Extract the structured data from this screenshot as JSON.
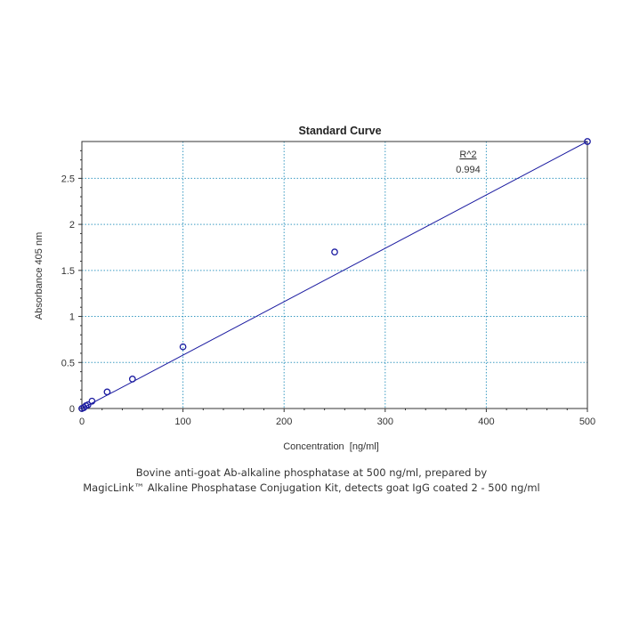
{
  "chart_data": {
    "type": "scatter",
    "title": "Standard Curve",
    "xlabel": "Concentration  [ng/ml]",
    "ylabel": "Absorbance 405 nm",
    "xlim": [
      0,
      500
    ],
    "ylim": [
      0,
      2.9
    ],
    "x_ticks": [
      0,
      100,
      200,
      300,
      400,
      500
    ],
    "x_tick_labels": [
      "0",
      "100",
      "200",
      "300",
      "400",
      "500"
    ],
    "y_ticks": [
      0,
      0.5,
      1,
      1.5,
      2,
      2.5
    ],
    "y_tick_labels": [
      "0",
      "0.5",
      "1",
      "1.5",
      "2",
      "2.5"
    ],
    "grid": true,
    "series": [
      {
        "points": [
          {
            "x": 0,
            "y": 0
          },
          {
            "x": 2,
            "y": 0.01
          },
          {
            "x": 4,
            "y": 0.03
          },
          {
            "x": 6,
            "y": 0.04
          },
          {
            "x": 10,
            "y": 0.08
          },
          {
            "x": 25,
            "y": 0.18
          },
          {
            "x": 50,
            "y": 0.32
          },
          {
            "x": 100,
            "y": 0.67
          },
          {
            "x": 250,
            "y": 1.7
          },
          {
            "x": 500,
            "y": 2.9
          }
        ],
        "marker": "open-circle",
        "color": "#1a1aa0"
      }
    ],
    "fit_line": {
      "x": [
        0,
        500
      ],
      "y": [
        0,
        2.9
      ],
      "color": "#1a1aa0"
    },
    "annotation": {
      "label": "R^2",
      "value": "0.994"
    }
  },
  "caption": {
    "line1": "Bovine anti-goat Ab-alkaline phosphatase at 500 ng/ml, prepared by",
    "line2": "MagicLink™ Alkaline Phosphatase Conjugation Kit, detects goat IgG coated 2 - 500 ng/ml"
  },
  "colors": {
    "grid": "#3b9bc2",
    "axis": "#333333",
    "series": "#1a1aa0"
  }
}
